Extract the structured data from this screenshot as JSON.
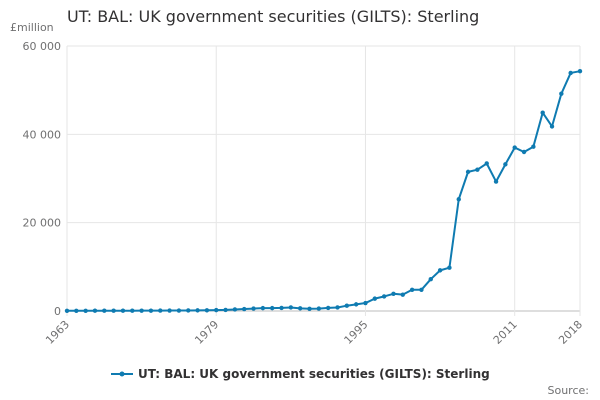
{
  "chart_data": {
    "type": "line",
    "title": "UT: BAL: UK government securities (GILTS): Sterling",
    "unit_label": "£million",
    "x": [
      1963,
      1964,
      1965,
      1966,
      1967,
      1968,
      1969,
      1970,
      1971,
      1972,
      1973,
      1974,
      1975,
      1976,
      1977,
      1978,
      1979,
      1980,
      1981,
      1982,
      1983,
      1984,
      1985,
      1986,
      1987,
      1988,
      1989,
      1990,
      1991,
      1992,
      1993,
      1994,
      1995,
      1996,
      1997,
      1998,
      1999,
      2000,
      2001,
      2002,
      2003,
      2004,
      2005,
      2006,
      2007,
      2008,
      2009,
      2010,
      2011,
      2012,
      2013,
      2014,
      2015,
      2016,
      2017,
      2018
    ],
    "x_ticks": [
      "1963",
      "1979",
      "1995",
      "2011",
      "2018"
    ],
    "ylim": [
      0,
      60000
    ],
    "y_ticks": [
      "0",
      "20 000",
      "40 000",
      "60 000"
    ],
    "grid": true,
    "series": [
      {
        "name": "UT: BAL: UK government securities (GILTS): Sterling",
        "color": "#0f7bb1",
        "values": [
          50,
          50,
          50,
          60,
          60,
          60,
          70,
          70,
          80,
          80,
          90,
          100,
          100,
          120,
          140,
          160,
          200,
          250,
          350,
          450,
          550,
          650,
          650,
          700,
          800,
          600,
          500,
          550,
          700,
          800,
          1200,
          1500,
          1800,
          2800,
          3300,
          3900,
          3700,
          4800,
          4800,
          7200,
          9200,
          9800,
          25300,
          31500,
          32000,
          33400,
          29300,
          33200,
          37000,
          36000,
          37200,
          44900,
          41800,
          49200,
          53900,
          54300
        ]
      }
    ],
    "legend_position": "bottom",
    "source_label": "Source:"
  }
}
